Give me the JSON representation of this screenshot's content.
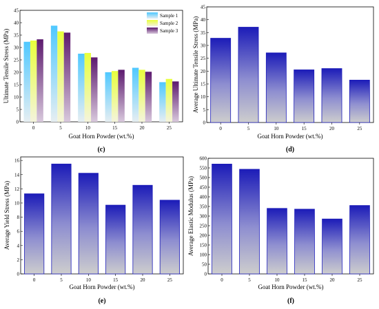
{
  "panel_labels": [
    "(c)",
    "(d)",
    "(e)",
    "(f)"
  ],
  "colors": {
    "axis": "#000000",
    "bar_top_blue": "#1c1cb8",
    "bar_bottom_gray": "#c8c8c8",
    "sample1": "#4fc8ff",
    "sample2": "#e8ff3c",
    "sample3": "#5c1a6e"
  },
  "chart_data": [
    {
      "type": "bar",
      "panel": "(c)",
      "categories": [
        "0",
        "5",
        "10",
        "15",
        "20",
        "25"
      ],
      "series": [
        {
          "name": "Sample 1",
          "values": [
            32.3,
            38.8,
            27.5,
            20.0,
            21.8,
            16.0
          ]
        },
        {
          "name": "Sample 2",
          "values": [
            32.8,
            36.5,
            27.8,
            20.5,
            21.0,
            17.3
          ]
        },
        {
          "name": "Sample 3",
          "values": [
            33.3,
            36.0,
            26.0,
            21.0,
            20.2,
            16.3
          ]
        }
      ],
      "xlabel": "Goat Horn Powder (wt.%)",
      "ylabel": "Ultimate Tensile Stress (MPa)",
      "ylim": [
        0,
        45
      ],
      "yticks": [
        "0",
        "5",
        "10",
        "15",
        "20",
        "25",
        "30",
        "35",
        "40",
        "45"
      ],
      "legend": "top-right",
      "grid": false
    },
    {
      "type": "bar",
      "panel": "(d)",
      "categories": [
        "0",
        "5",
        "10",
        "15",
        "20",
        "25"
      ],
      "values": [
        32.8,
        37.1,
        27.1,
        20.5,
        21.0,
        16.5
      ],
      "xlabel": "Goat Horn Powder (wt.%)",
      "ylabel": "Average Ultimate Tensile Stress (MPa)",
      "ylim": [
        0,
        45
      ],
      "yticks": [
        "0",
        "5",
        "10",
        "15",
        "20",
        "25",
        "30",
        "35",
        "40",
        "45"
      ],
      "grid": false
    },
    {
      "type": "bar",
      "panel": "(e)",
      "categories": [
        "0",
        "5",
        "10",
        "15",
        "20",
        "25"
      ],
      "values": [
        11.3,
        15.5,
        14.2,
        9.7,
        12.5,
        10.4
      ],
      "xlabel": "Goat Horn Powder (wt.%)",
      "ylabel": "Average Yield Stress (MPa)",
      "ylim": [
        0,
        16.5
      ],
      "yticks": [
        "0",
        "2",
        "4",
        "6",
        "8",
        "10",
        "12",
        "14",
        "16"
      ],
      "grid": false
    },
    {
      "type": "bar",
      "panel": "(f)",
      "categories": [
        "0",
        "5",
        "10",
        "15",
        "20",
        "25"
      ],
      "values": [
        570,
        543,
        340,
        336,
        285,
        355
      ],
      "xlabel": "Goat Horn Powder (wt.%)",
      "ylabel": "Average Elastic Modulus (MPa)",
      "ylim": [
        0,
        600
      ],
      "yticks": [
        "0",
        "50",
        "100",
        "150",
        "200",
        "250",
        "300",
        "350",
        "400",
        "450",
        "500",
        "550",
        "600"
      ],
      "grid": false
    }
  ]
}
